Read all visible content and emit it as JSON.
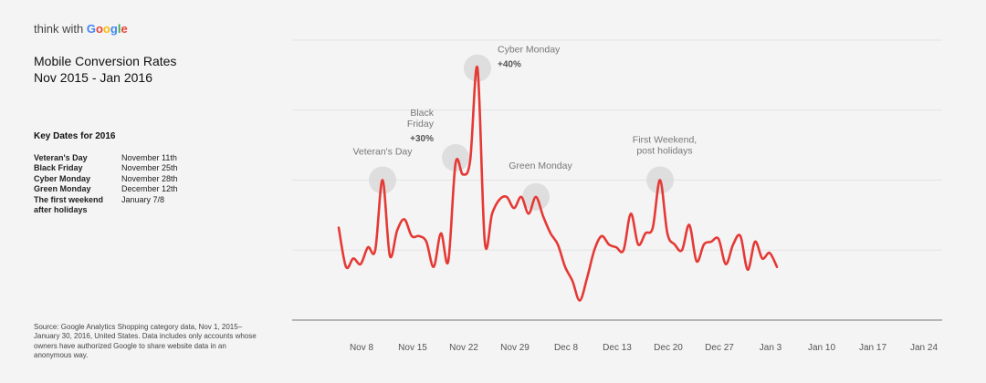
{
  "brand": {
    "prefix": "think with",
    "google": "Google"
  },
  "title": {
    "line1": "Mobile Conversion Rates",
    "line2": "Nov 2015 - Jan 2016"
  },
  "key_dates": {
    "heading": "Key Dates for 2016",
    "rows": [
      {
        "label": "Veteran's Day",
        "date": "November 11th"
      },
      {
        "label": "Black Friday",
        "date": "November 25th"
      },
      {
        "label": "Cyber Monday",
        "date": "November 28th"
      },
      {
        "label": "Green Monday",
        "date": "December 12th"
      },
      {
        "label": "The first weekend",
        "label2": "after holidays",
        "date": "January 7/8"
      }
    ]
  },
  "source": "Source: Google Analytics Shopping category data, Nov 1, 2015–January 30, 2016, United States. Data includes only accounts whose owners have authorized Google to share website data in an anonymous way.",
  "colors": {
    "line": "#e53935",
    "halo": "#d9d9d9"
  },
  "chart_data": {
    "type": "line",
    "title": "Mobile Conversion Rates",
    "subtitle": "Nov 2015 - Jan 2016",
    "xlabel": "",
    "ylabel": "",
    "categories": [
      "Nov 8",
      "Nov 15",
      "Nov 22",
      "Nov 29",
      "Dec 8",
      "Dec 13",
      "Dec 20",
      "Dec 27",
      "Jan 3",
      "Jan 10",
      "Jan 17",
      "Jan 24"
    ],
    "y_axis_labels": false,
    "grid": "horizontal",
    "ylim": [
      0,
      100
    ],
    "series": [
      {
        "values": [
          [
            -4,
            33
          ],
          [
            -3,
            19
          ],
          [
            -2,
            22
          ],
          [
            -1,
            20
          ],
          [
            0,
            26
          ],
          [
            1,
            25
          ],
          [
            2,
            50
          ],
          [
            3,
            23
          ],
          [
            4,
            32
          ],
          [
            5,
            36
          ],
          [
            6,
            30
          ],
          [
            7,
            30
          ],
          [
            8,
            28
          ],
          [
            9,
            19
          ],
          [
            10,
            31
          ],
          [
            11,
            21
          ],
          [
            12,
            56
          ],
          [
            13,
            52
          ],
          [
            14,
            57
          ],
          [
            15,
            90
          ],
          [
            16,
            28
          ],
          [
            17,
            38
          ],
          [
            18,
            43
          ],
          [
            19,
            44
          ],
          [
            20,
            40
          ],
          [
            21,
            44
          ],
          [
            22,
            38
          ],
          [
            23,
            44
          ],
          [
            24,
            37
          ],
          [
            25,
            31
          ],
          [
            26,
            27
          ],
          [
            27,
            19
          ],
          [
            28,
            14
          ],
          [
            29,
            7
          ],
          [
            30,
            15
          ],
          [
            31,
            25
          ],
          [
            32,
            30
          ],
          [
            33,
            27
          ],
          [
            34,
            26
          ],
          [
            35,
            25
          ],
          [
            36,
            38
          ],
          [
            37,
            27
          ],
          [
            38,
            31
          ],
          [
            39,
            33
          ],
          [
            40,
            50
          ],
          [
            41,
            31
          ],
          [
            42,
            27
          ],
          [
            43,
            25
          ],
          [
            44,
            34
          ],
          [
            45,
            21
          ],
          [
            46,
            27
          ],
          [
            47,
            28
          ],
          [
            48,
            29
          ],
          [
            49,
            20
          ],
          [
            50,
            27
          ],
          [
            51,
            30
          ],
          [
            52,
            18
          ],
          [
            53,
            28
          ],
          [
            54,
            22
          ],
          [
            55,
            24
          ],
          [
            56,
            19
          ]
        ]
      }
    ],
    "annotations": [
      {
        "label": "Veteran's Day",
        "pct": "",
        "x": 2,
        "y": 50
      },
      {
        "label": "Black",
        "label2": "Friday",
        "pct": "+30%",
        "x": 12,
        "y": 58
      },
      {
        "label": "Cyber Monday",
        "pct": "+40%",
        "x": 15,
        "y": 90
      },
      {
        "label": "Green Monday",
        "pct": "",
        "x": 23,
        "y": 44
      },
      {
        "label": "First Weekend,",
        "label2": "post holidays",
        "pct": "",
        "x": 40,
        "y": 50
      }
    ]
  }
}
